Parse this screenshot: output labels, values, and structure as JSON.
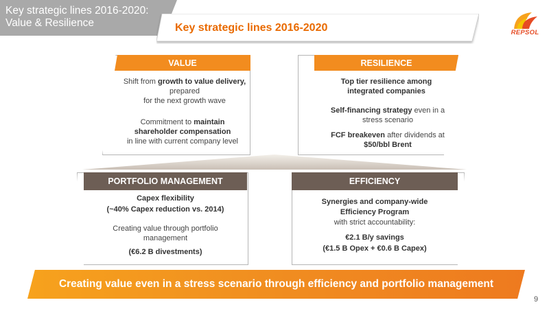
{
  "header": {
    "title_line1": "Key strategic lines 2016-2020:",
    "title_line2": "Value & Resilience",
    "banner": "Key strategic lines 2016-2020",
    "logo_text": "REPSOL"
  },
  "value": {
    "title": "VALUE",
    "p1_pre": "Shift from ",
    "p1_bold": "growth to value delivery,",
    "p1_post": " prepared",
    "p1_line3": "for the next growth wave",
    "p2_pre": "Commitment  to ",
    "p2_bold1": "maintain",
    "p2_bold2": "shareholder compensation",
    "p2_line3": "in line with current company level"
  },
  "resilience": {
    "title": "RESILIENCE",
    "p1": "Top tier resilience among integrated companies",
    "p2_bold": "Self-financing strategy",
    "p2_post": " even in a stress scenario",
    "p3_bold": "FCF breakeven",
    "p3_post": " after dividends at",
    "p3_bold2": "$50/bbl Brent"
  },
  "portfolio": {
    "title": "PORTFOLIO MANAGEMENT",
    "l1": "Capex flexibility",
    "l2": "(~40% Capex reduction vs. 2014)",
    "l3": "Creating value through portfolio",
    "l4": "management",
    "l5": "(€6.2 B divestments)"
  },
  "efficiency": {
    "title": "EFFICIENCY",
    "l1": "Synergies and company-wide",
    "l2": "Efficiency Program",
    "l3": "with strict accountability:",
    "l4": "€2.1 B/y savings",
    "l5": "(€1.5 B Opex + €0.6 B Capex)"
  },
  "footer": {
    "banner": "Creating value even in a stress scenario through efficiency and portfolio management",
    "page": "9"
  },
  "colors": {
    "orange": "#f28c1f",
    "brown": "#6d5e55",
    "title_orange": "#e96a00",
    "header_gray": "#a9a9a9"
  }
}
